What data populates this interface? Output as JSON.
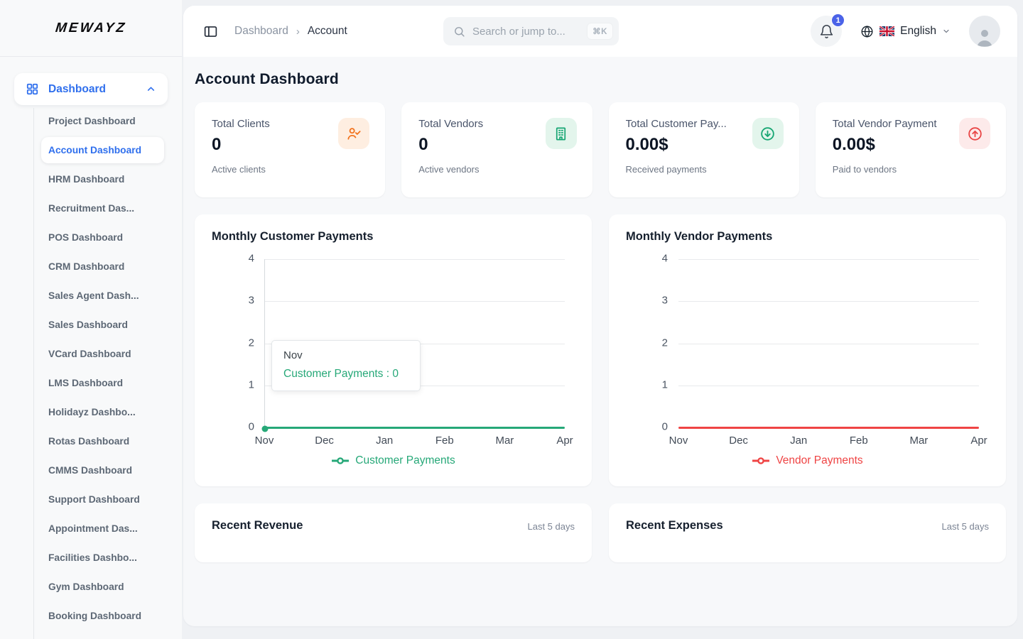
{
  "page": {
    "title": "Account Dashboard"
  },
  "sidebar": {
    "logo": "MEWAYZ",
    "parent": {
      "label": "Dashboard",
      "icon": "grid-icon",
      "state_icon": "chevron-up-icon"
    },
    "items": [
      {
        "label": "Project Dashboard",
        "active": false
      },
      {
        "label": "Account Dashboard",
        "active": true
      },
      {
        "label": "HRM Dashboard",
        "active": false
      },
      {
        "label": "Recruitment Das...",
        "active": false
      },
      {
        "label": "POS Dashboard",
        "active": false
      },
      {
        "label": "CRM Dashboard",
        "active": false
      },
      {
        "label": "Sales Agent Dash...",
        "active": false
      },
      {
        "label": "Sales Dashboard",
        "active": false
      },
      {
        "label": "VCard Dashboard",
        "active": false
      },
      {
        "label": "LMS Dashboard",
        "active": false
      },
      {
        "label": "Holidayz Dashbo...",
        "active": false
      },
      {
        "label": "Rotas Dashboard",
        "active": false
      },
      {
        "label": "CMMS Dashboard",
        "active": false
      },
      {
        "label": "Support Dashboard",
        "active": false
      },
      {
        "label": "Appointment Das...",
        "active": false
      },
      {
        "label": "Facilities Dashbo...",
        "active": false
      },
      {
        "label": "Gym Dashboard",
        "active": false
      },
      {
        "label": "Booking Dashboard",
        "active": false
      }
    ]
  },
  "header": {
    "breadcrumb": {
      "root": "Dashboard",
      "separator": "›",
      "current": "Account"
    },
    "search": {
      "placeholder": "Search or jump to...",
      "shortcut": "⌘K"
    },
    "notifications": {
      "count": "1",
      "icon": "bell-icon"
    },
    "language": {
      "label": "English",
      "icons": [
        "globe-icon",
        "uk-flag-icon",
        "chevron-down-icon"
      ]
    },
    "avatar_icon": "user-icon"
  },
  "stats": [
    {
      "title": "Total Clients",
      "value": "0",
      "subtitle": "Active clients",
      "icon": "user-check-icon",
      "accent": "#f2731d",
      "accent_bg": "#feeee1"
    },
    {
      "title": "Total Vendors",
      "value": "0",
      "subtitle": "Active vendors",
      "icon": "building-icon",
      "accent": "#17a673",
      "accent_bg": "#e3f5ec"
    },
    {
      "title": "Total Customer Pay...",
      "value": "0.00$",
      "subtitle": "Received payments",
      "icon": "arrow-down-circle-icon",
      "accent": "#17a673",
      "accent_bg": "#e3f5ec"
    },
    {
      "title": "Total Vendor Payment",
      "value": "0.00$",
      "subtitle": "Paid to vendors",
      "icon": "arrow-up-circle-icon",
      "accent": "#e94545",
      "accent_bg": "#fdeaea"
    }
  ],
  "chart_data": [
    {
      "type": "line",
      "title": "Monthly Customer Payments",
      "categories": [
        "Nov",
        "Dec",
        "Jan",
        "Feb",
        "Mar",
        "Apr"
      ],
      "series": [
        {
          "name": "Customer Payments",
          "values": [
            0,
            0,
            0,
            0,
            0,
            0
          ],
          "color": "#26a878"
        }
      ],
      "ylim": [
        0,
        4
      ],
      "yticks": [
        0,
        1,
        2,
        3,
        4
      ],
      "grid": true,
      "y_axis_line": true,
      "legend_position": "bottom",
      "marker": {
        "category": "Nov",
        "value": 0
      },
      "tooltip": {
        "title": "Nov",
        "label": "Customer Payments : 0"
      }
    },
    {
      "type": "line",
      "title": "Monthly Vendor Payments",
      "categories": [
        "Nov",
        "Dec",
        "Jan",
        "Feb",
        "Mar",
        "Apr"
      ],
      "series": [
        {
          "name": "Vendor Payments",
          "values": [
            0,
            0,
            0,
            0,
            0,
            0
          ],
          "color": "#ef4444"
        }
      ],
      "ylim": [
        0,
        4
      ],
      "yticks": [
        0,
        1,
        2,
        3,
        4
      ],
      "grid": true,
      "y_axis_line": false,
      "legend_position": "bottom"
    }
  ],
  "panels": [
    {
      "title": "Recent Revenue",
      "meta": "Last 5 days"
    },
    {
      "title": "Recent Expenses",
      "meta": "Last 5 days"
    }
  ]
}
